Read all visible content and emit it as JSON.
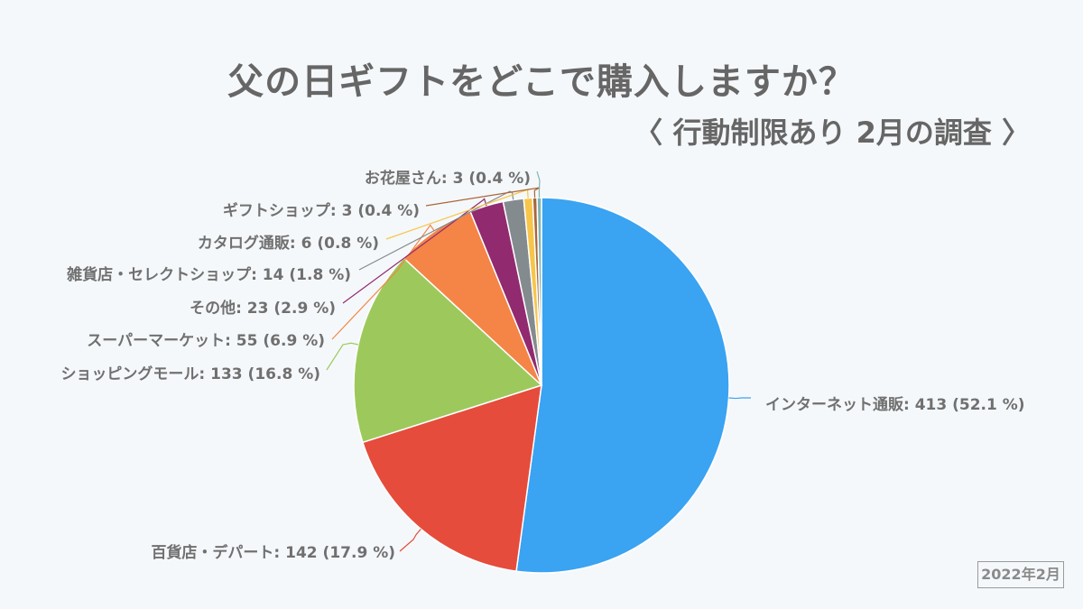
{
  "header": {
    "title": "父の日ギフトをどこで購入しますか？",
    "subtitle": "〈 行動制限あり 2月の調査 〉"
  },
  "footer": {
    "date_badge": "2022年2月"
  },
  "labels": [
    "インターネット通販: 413 (52.1 %)",
    "百貨店・デパート: 142 (17.9 %)",
    "ショッピングモール: 133 (16.8 %)",
    "スーパーマーケット: 55 (6.9 %)",
    "その他: 23 (2.9 %)",
    "雑貨店・セレクトショップ: 14 (1.8 %)",
    "カタログ通販: 6 (0.8 %)",
    "ギフトショップ: 3 (0.4 %)",
    "お花屋さん: 3 (0.4 %)"
  ],
  "chart_data": {
    "type": "pie",
    "title": "父の日ギフトをどこで購入しますか？",
    "subtitle": "〈 行動制限あり 2月の調査 〉",
    "categories": [
      "インターネット通販",
      "百貨店・デパート",
      "ショッピングモール",
      "スーパーマーケット",
      "その他",
      "雑貨店・セレクトショップ",
      "カタログ通販",
      "ギフトショップ",
      "お花屋さん"
    ],
    "values": [
      413,
      142,
      133,
      55,
      23,
      14,
      6,
      3,
      3
    ],
    "percentages": [
      52.1,
      17.9,
      16.8,
      6.9,
      2.9,
      1.8,
      0.8,
      0.4,
      0.4
    ],
    "colors": [
      "#3aa3f2",
      "#e54c3c",
      "#9dc95c",
      "#f48547",
      "#922a70",
      "#848b8e",
      "#f6c54a",
      "#a8673b",
      "#7fb5b5"
    ],
    "start_angle": "12 o'clock, clockwise",
    "legend": "none (outside data labels with leader lines)",
    "annotation": "2022年2月"
  }
}
